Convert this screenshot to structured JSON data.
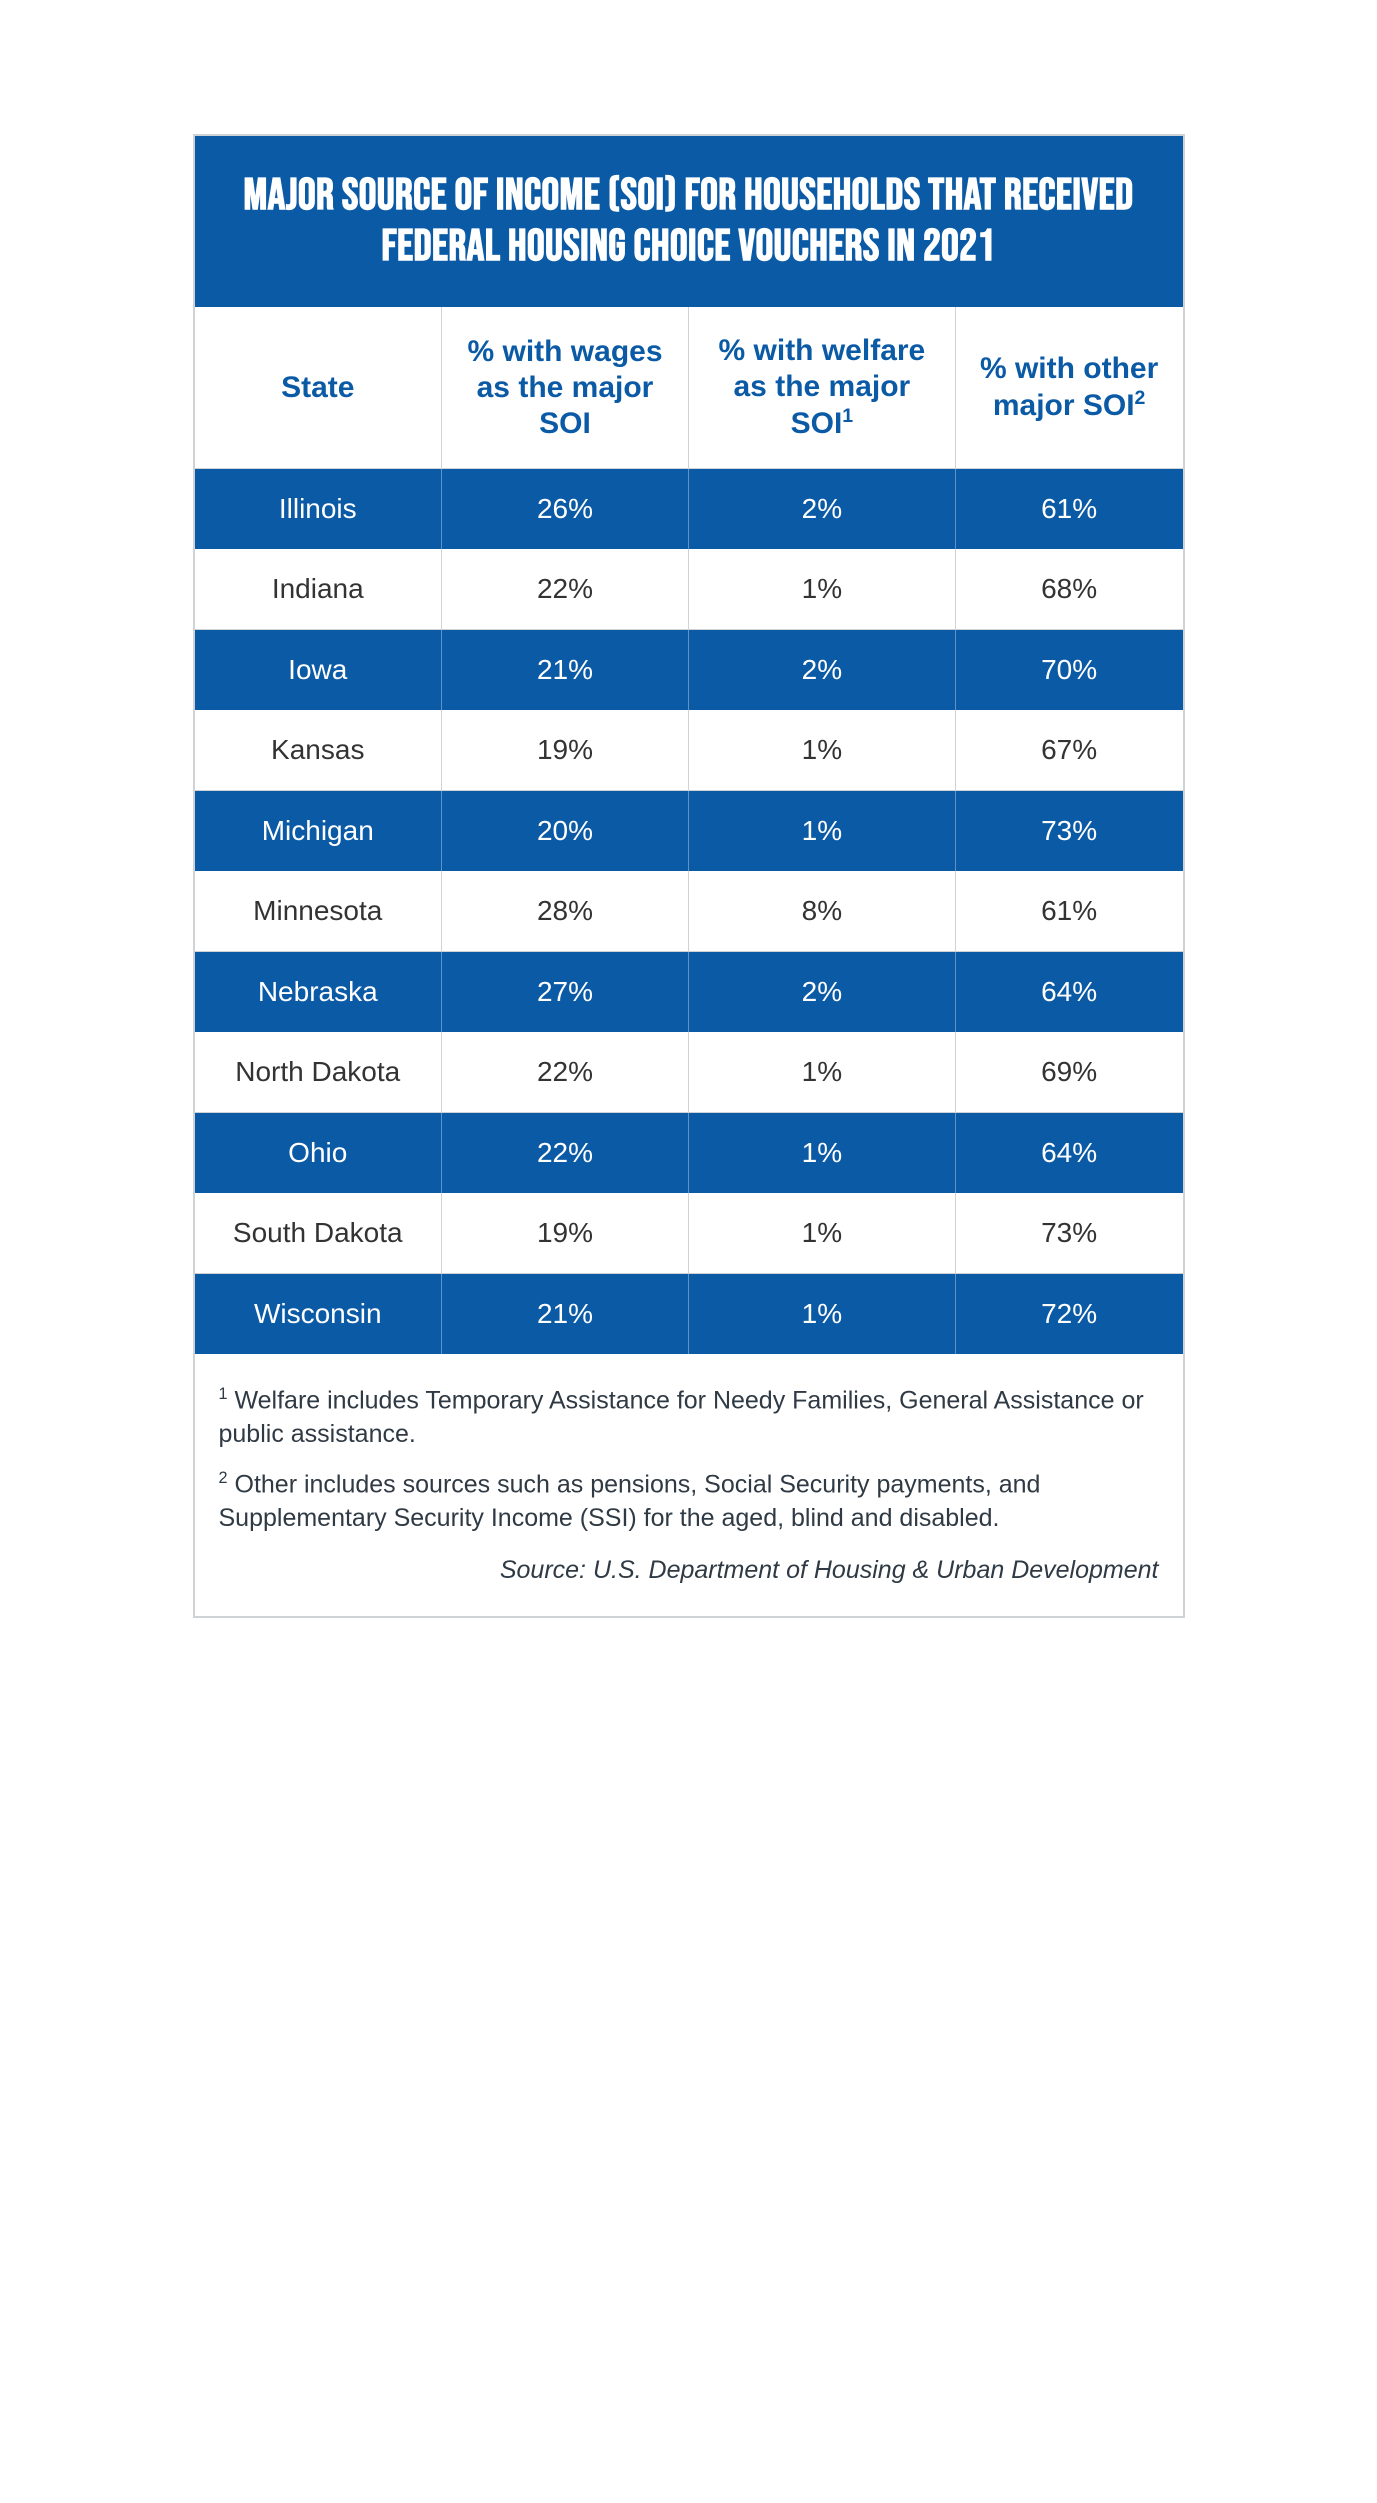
{
  "table": {
    "title": "MAJOR SOURCE OF INCOME (SOI) FOR HOUSEHOLDS THAT RECEIVED FEDERAL HOUSING CHOICE VOUCHERS IN 2021",
    "title_bg": "#0b5aa5",
    "title_text_color": "#ffffff",
    "title_fontsize": 44,
    "header_text_color": "#0b5aa5",
    "header_fontsize": 30,
    "cell_fontsize": 28,
    "row_blue_bg": "#0b5aa5",
    "row_blue_text": "#ffffff",
    "row_white_bg": "#ffffff",
    "row_white_text": "#333333",
    "border_color": "#cfd3d6",
    "columns": [
      {
        "label": "State"
      },
      {
        "label": "% with wages as the major SOI"
      },
      {
        "label_html": "% with welfare as the major SOI",
        "sup": "1"
      },
      {
        "label_html": "% with other major SOI",
        "sup": "2"
      }
    ],
    "rows": [
      {
        "state": "Illinois",
        "wages": "26%",
        "welfare": "2%",
        "other": "61%"
      },
      {
        "state": "Indiana",
        "wages": "22%",
        "welfare": "1%",
        "other": "68%"
      },
      {
        "state": "Iowa",
        "wages": "21%",
        "welfare": "2%",
        "other": "70%"
      },
      {
        "state": "Kansas",
        "wages": "19%",
        "welfare": "1%",
        "other": "67%"
      },
      {
        "state": "Michigan",
        "wages": "20%",
        "welfare": "1%",
        "other": "73%"
      },
      {
        "state": "Minnesota",
        "wages": "28%",
        "welfare": "8%",
        "other": "61%"
      },
      {
        "state": "Nebraska",
        "wages": "27%",
        "welfare": "2%",
        "other": "64%"
      },
      {
        "state": "North Dakota",
        "wages": "22%",
        "welfare": "1%",
        "other": "69%"
      },
      {
        "state": "Ohio",
        "wages": "22%",
        "welfare": "1%",
        "other": "64%"
      },
      {
        "state": "South Dakota",
        "wages": "19%",
        "welfare": "1%",
        "other": "73%"
      },
      {
        "state": "Wisconsin",
        "wages": "21%",
        "welfare": "1%",
        "other": "72%"
      }
    ],
    "footnotes": [
      {
        "sup": "1",
        "text": " Welfare includes Temporary Assistance for Needy Families, General Assistance or public assistance."
      },
      {
        "sup": "2",
        "text": " Other includes sources such as pensions, Social Security payments, and Supplementary Security Income (SSI) for the aged, blind and disabled."
      }
    ],
    "source": "Source: U.S. Department of Housing & Urban Development",
    "footnote_fontsize": 25,
    "footnote_color": "#2f3a44"
  }
}
